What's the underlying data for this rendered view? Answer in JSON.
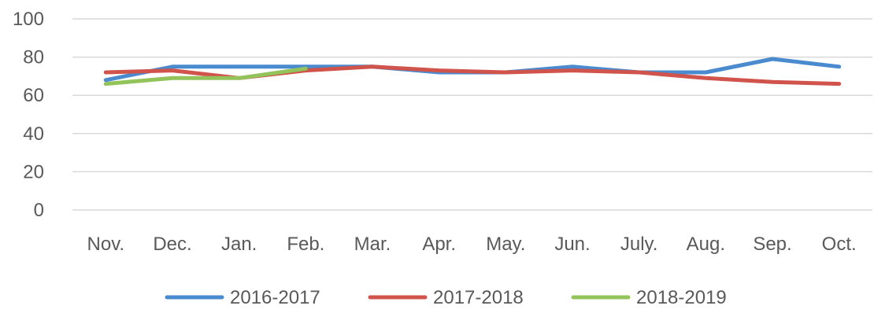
{
  "chart_data": {
    "type": "line",
    "title": "",
    "xlabel": "",
    "ylabel": "",
    "categories": [
      "Nov.",
      "Dec.",
      "Jan.",
      "Feb.",
      "Mar.",
      "Apr.",
      "May.",
      "Jun.",
      "July.",
      "Aug.",
      "Sep.",
      "Oct."
    ],
    "ylim": [
      0,
      100
    ],
    "yticks": [
      0,
      20,
      40,
      60,
      80,
      100
    ],
    "grid": true,
    "legend_position": "bottom",
    "series": [
      {
        "name": "2016-2017",
        "color": "#4a8bd0",
        "values": [
          68,
          75,
          75,
          75,
          75,
          72,
          72,
          75,
          72,
          72,
          79,
          75
        ]
      },
      {
        "name": "2017-2018",
        "color": "#d0534c",
        "values": [
          72,
          73,
          69,
          73,
          75,
          73,
          72,
          73,
          72,
          69,
          67,
          66
        ]
      },
      {
        "name": "2018-2019",
        "color": "#93c35b",
        "values": [
          66,
          69,
          69,
          74,
          null,
          null,
          null,
          null,
          null,
          null,
          null,
          null
        ]
      }
    ]
  }
}
